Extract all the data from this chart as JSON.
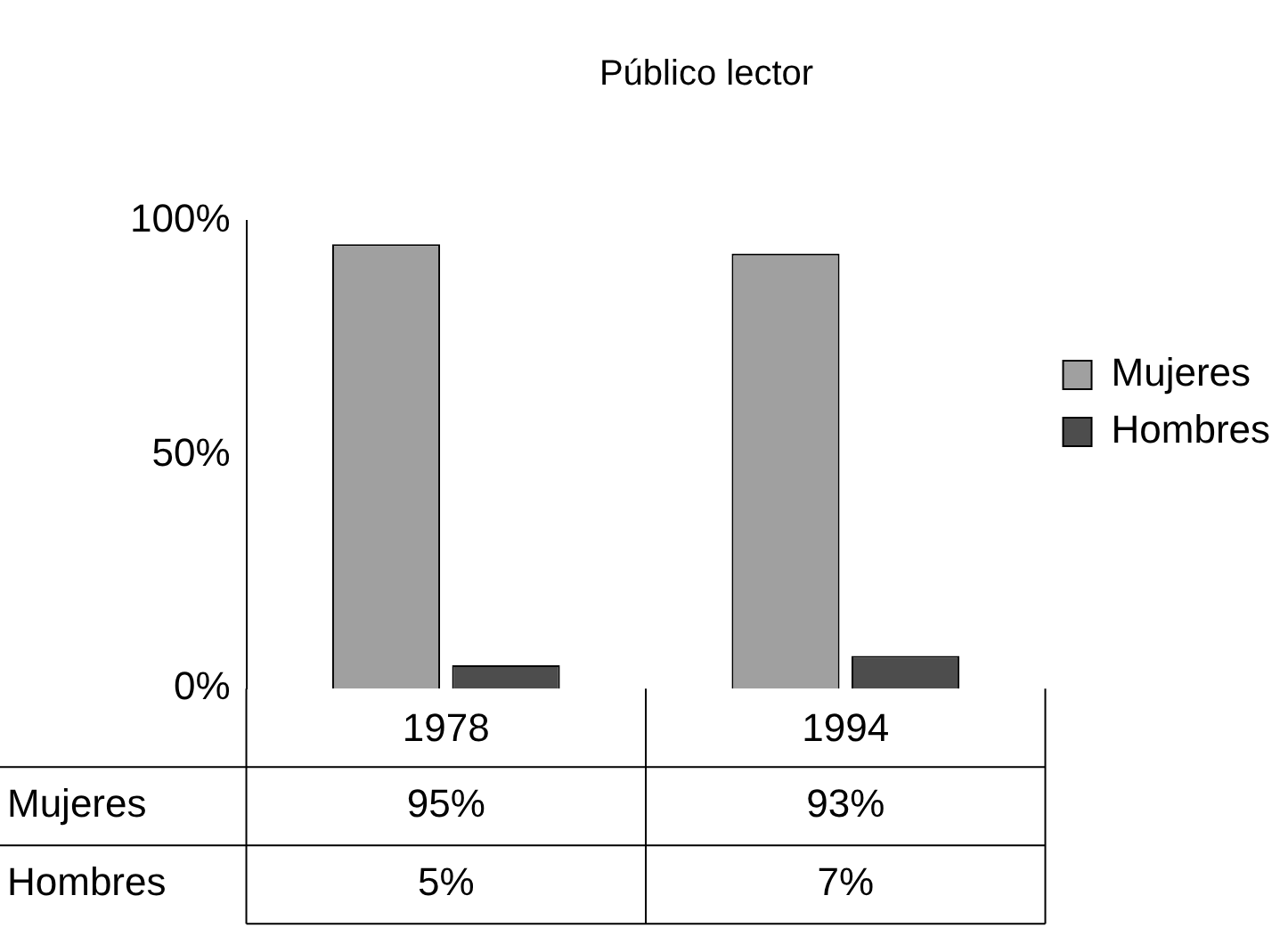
{
  "chart_data": {
    "type": "bar",
    "title": "Público lector",
    "categories": [
      "1978",
      "1994"
    ],
    "series": [
      {
        "name": "Mujeres",
        "color": "#a0a0a0",
        "values": [
          95,
          93
        ],
        "value_labels": [
          "95%",
          "93%"
        ]
      },
      {
        "name": "Hombres",
        "color": "#4d4d4d",
        "values": [
          5,
          7
        ],
        "value_labels": [
          "5%",
          "7%"
        ]
      }
    ],
    "ylim": [
      0,
      100
    ],
    "yticks": [
      {
        "value": 0,
        "label": "0%"
      },
      {
        "value": 50,
        "label": "50%"
      },
      {
        "value": 100,
        "label": "100%"
      }
    ],
    "grid": false,
    "legend": "right"
  }
}
